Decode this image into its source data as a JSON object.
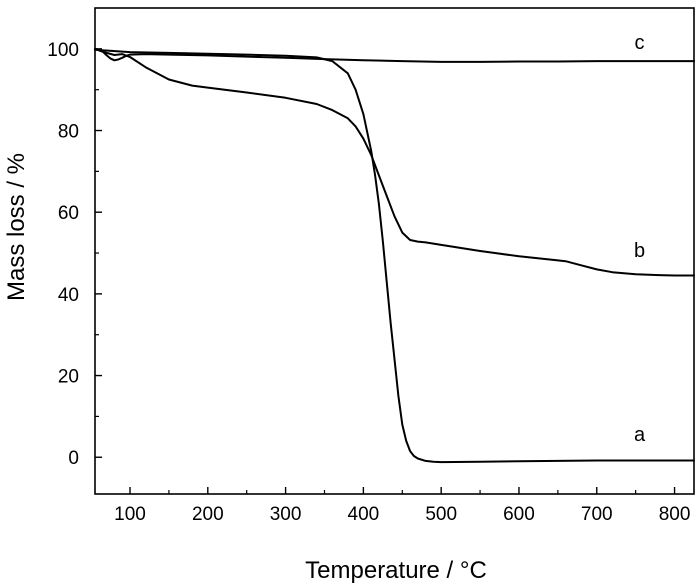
{
  "chart_data": {
    "type": "line",
    "title": "",
    "xlabel": "Temperature / °C",
    "ylabel": "Mass loss / %",
    "xlim": [
      55,
      825
    ],
    "ylim": [
      -9,
      110
    ],
    "xticks": [
      100,
      200,
      300,
      400,
      500,
      600,
      700,
      800
    ],
    "xtick_labels": [
      "100",
      "200",
      "300",
      "400",
      "500",
      "600",
      "700",
      "800"
    ],
    "xminor": [
      150,
      250,
      350,
      450,
      550,
      650,
      750
    ],
    "yticks": [
      0,
      20,
      40,
      60,
      80,
      100
    ],
    "ytick_labels": [
      "0",
      "20",
      "40",
      "60",
      "80",
      "100"
    ],
    "yminor": [
      10,
      30,
      50,
      70,
      90
    ],
    "grid": false,
    "legend": "none",
    "series": [
      {
        "name": "a",
        "label_at": [
          755,
          4
        ],
        "x": [
          55,
          100,
          150,
          200,
          250,
          300,
          340,
          360,
          380,
          390,
          400,
          410,
          415,
          420,
          425,
          430,
          435,
          440,
          445,
          450,
          455,
          460,
          465,
          470,
          480,
          490,
          500,
          550,
          600,
          650,
          700,
          750,
          800,
          825
        ],
        "y": [
          99.8,
          99.2,
          99,
          98.8,
          98.6,
          98.3,
          97.9,
          97,
          94,
          90,
          84,
          75,
          69,
          62,
          53,
          43,
          33,
          24,
          15,
          8,
          4,
          1.5,
          0.3,
          -0.3,
          -0.9,
          -1.1,
          -1.2,
          -1.1,
          -1.0,
          -0.9,
          -0.8,
          -0.8,
          -0.8,
          -0.8
        ]
      },
      {
        "name": "b",
        "label_at": [
          755,
          49
        ],
        "x": [
          55,
          62,
          70,
          80,
          90,
          100,
          120,
          150,
          180,
          200,
          250,
          300,
          340,
          360,
          380,
          390,
          400,
          410,
          420,
          430,
          440,
          450,
          460,
          470,
          480,
          500,
          550,
          600,
          650,
          660,
          680,
          700,
          720,
          750,
          780,
          800,
          825
        ],
        "y": [
          100,
          99.5,
          99,
          98.5,
          98.7,
          98,
          95.5,
          92.5,
          91,
          90.5,
          89.3,
          88,
          86.5,
          85,
          83,
          81,
          78,
          74,
          69,
          64,
          59,
          55,
          53.2,
          52.8,
          52.6,
          52,
          50.5,
          49.2,
          48.2,
          48,
          47,
          46,
          45.3,
          44.8,
          44.6,
          44.5,
          44.5
        ]
      },
      {
        "name": "c",
        "label_at": [
          755,
          100
        ],
        "x": [
          55,
          60,
          65,
          70,
          75,
          80,
          85,
          90,
          95,
          100,
          120,
          150,
          200,
          250,
          300,
          350,
          400,
          450,
          500,
          550,
          600,
          650,
          700,
          750,
          800,
          825
        ],
        "y": [
          100,
          99.8,
          99.3,
          98.4,
          97.6,
          97.2,
          97.4,
          97.8,
          98.3,
          98.6,
          98.7,
          98.6,
          98.4,
          98.1,
          97.8,
          97.5,
          97.2,
          97.0,
          96.8,
          96.8,
          96.9,
          96.9,
          97.0,
          97.0,
          97.0,
          97.0
        ]
      }
    ]
  }
}
